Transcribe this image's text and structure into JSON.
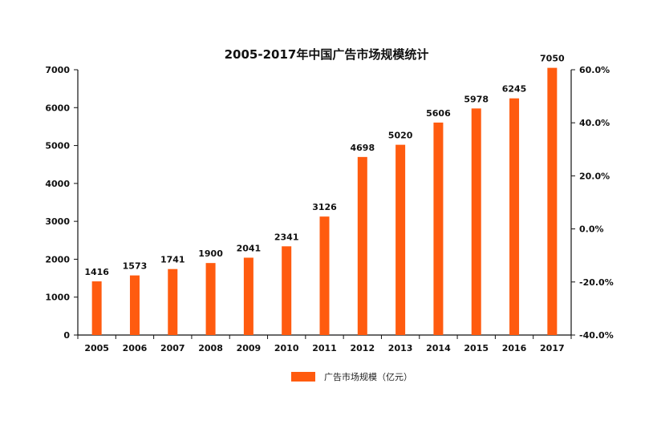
{
  "chart_data": {
    "type": "bar",
    "title": "2005-2017年中国广告市场规模统计",
    "categories": [
      "2005",
      "2006",
      "2007",
      "2008",
      "2009",
      "2010",
      "2011",
      "2012",
      "2013",
      "2014",
      "2015",
      "2016",
      "2017"
    ],
    "series": [
      {
        "name": "广告市场规模（亿元）",
        "values": [
          1416,
          1573,
          1741,
          1900,
          2041,
          2341,
          3126,
          4698,
          5020,
          5606,
          5978,
          6245,
          7050
        ]
      }
    ],
    "ylim": [
      0,
      7000
    ],
    "y_ticks": [
      "0",
      "1000",
      "2000",
      "3000",
      "4000",
      "5000",
      "6000",
      "7000"
    ],
    "y2lim": [
      -40.0,
      60.0
    ],
    "y2_ticks": [
      "-40.0%",
      "-20.0%",
      "0.0%",
      "20.0%",
      "40.0%",
      "60.0%"
    ],
    "grid": false,
    "legend_position": "bottom",
    "colors": {
      "bar": "#ff5b0f",
      "axis": "#111111"
    }
  }
}
